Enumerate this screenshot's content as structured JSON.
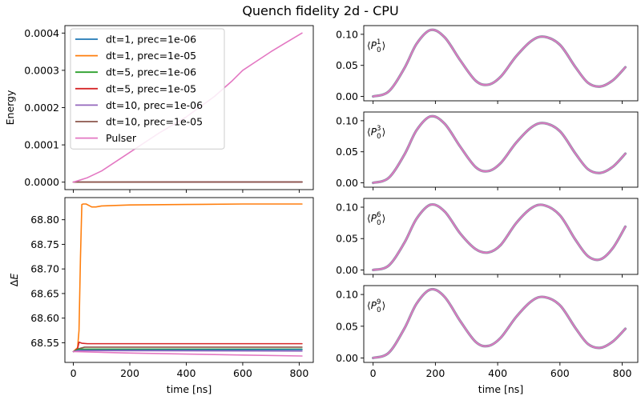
{
  "figure": {
    "title": "Quench fidelity 2d - CPU"
  },
  "chart_data": [
    {
      "id": "energy",
      "type": "line",
      "title": "",
      "xlabel": "",
      "ylabel": "Energy",
      "xlim": [
        -30,
        850
      ],
      "ylim": [
        -2e-05,
        0.00042
      ],
      "xticks": [
        0,
        200,
        400,
        600,
        800
      ],
      "yticks": [
        0.0,
        0.0001,
        0.0002,
        0.0003,
        0.0004
      ],
      "yticklabels": [
        "0.0000",
        "0.0001",
        "0.0002",
        "0.0003",
        "0.0004"
      ],
      "grid": false,
      "legend": "upper-left",
      "series": [
        {
          "name": "dt=1, prec=1e-06",
          "color": "#1f77b4",
          "x": [
            0,
            810
          ],
          "y": [
            0,
            5e-07
          ]
        },
        {
          "name": "dt=1, prec=1e-05",
          "color": "#ff7f0e",
          "x": [
            0,
            810
          ],
          "y": [
            0,
            5e-07
          ]
        },
        {
          "name": "dt=5, prec=1e-06",
          "color": "#2ca02c",
          "x": [
            0,
            810
          ],
          "y": [
            0,
            5e-07
          ]
        },
        {
          "name": "dt=5, prec=1e-05",
          "color": "#d62728",
          "x": [
            0,
            810
          ],
          "y": [
            0,
            5e-07
          ]
        },
        {
          "name": "dt=10, prec=1e-06",
          "color": "#9467bd",
          "x": [
            0,
            810
          ],
          "y": [
            0,
            5e-07
          ]
        },
        {
          "name": "dt=10, prec=1e-05",
          "color": "#8c564b",
          "x": [
            0,
            810
          ],
          "y": [
            0,
            5e-07
          ]
        },
        {
          "name": "Pulser",
          "color": "#e377c2",
          "x": [
            0,
            50,
            100,
            200,
            300,
            400,
            500,
            560,
            600,
            650,
            700,
            750,
            810
          ],
          "y": [
            0,
            1.2e-05,
            3e-05,
            8e-05,
            0.00013,
            0.000175,
            0.00023,
            0.00027,
            0.0003,
            0.000325,
            0.00035,
            0.000373,
            0.0004
          ]
        }
      ]
    },
    {
      "id": "deltaE",
      "type": "line",
      "title": "",
      "xlabel": "time [ns]",
      "ylabel": "ΔE",
      "xlim": [
        -30,
        850
      ],
      "ylim": [
        68.51,
        68.845
      ],
      "xticks": [
        0,
        200,
        400,
        600,
        800
      ],
      "yticks": [
        68.55,
        68.6,
        68.65,
        68.7,
        68.75,
        68.8
      ],
      "yticklabels": [
        "68.55",
        "68.60",
        "68.65",
        "68.70",
        "68.75",
        "68.80"
      ],
      "grid": false,
      "series": [
        {
          "name": "dt=1, prec=1e-05",
          "color": "#ff7f0e",
          "x": [
            0,
            15,
            20,
            25,
            30,
            35,
            45,
            55,
            65,
            80,
            100,
            150,
            200,
            400,
            600,
            810
          ],
          "y": [
            68.532,
            68.54,
            68.575,
            68.72,
            68.831,
            68.832,
            68.832,
            68.829,
            68.826,
            68.826,
            68.828,
            68.829,
            68.83,
            68.831,
            68.832,
            68.832
          ]
        },
        {
          "name": "dt=5, prec=1e-05",
          "color": "#d62728",
          "x": [
            0,
            15,
            20,
            30,
            50,
            100,
            810
          ],
          "y": [
            68.532,
            68.538,
            68.551,
            68.549,
            68.548,
            68.548,
            68.548
          ]
        },
        {
          "name": "dt=10, prec=1e-05",
          "color": "#8c564b",
          "x": [
            0,
            20,
            40,
            810
          ],
          "y": [
            68.532,
            68.538,
            68.541,
            68.541
          ]
        },
        {
          "name": "dt=5, prec=1e-06",
          "color": "#2ca02c",
          "x": [
            0,
            20,
            810
          ],
          "y": [
            68.532,
            68.537,
            68.537
          ]
        },
        {
          "name": "dt=1, prec=1e-06",
          "color": "#1f77b4",
          "x": [
            0,
            20,
            810
          ],
          "y": [
            68.532,
            68.535,
            68.536
          ]
        },
        {
          "name": "dt=10, prec=1e-06",
          "color": "#9467bd",
          "x": [
            0,
            20,
            810
          ],
          "y": [
            68.532,
            68.534,
            68.533
          ]
        },
        {
          "name": "Pulser",
          "color": "#e377c2",
          "x": [
            0,
            200,
            400,
            600,
            810
          ],
          "y": [
            68.532,
            68.529,
            68.527,
            68.525,
            68.523
          ]
        }
      ]
    },
    {
      "id": "p01",
      "type": "line",
      "ylabel": "⟨P₀¹⟩",
      "label_base": "P",
      "label_sub": "0",
      "label_sup": "1",
      "xlim": [
        -30,
        850
      ],
      "ylim": [
        -0.007,
        0.114
      ],
      "xticks": [
        0,
        200,
        400,
        600,
        800
      ],
      "yticks": [
        0.0,
        0.05,
        0.1
      ],
      "yticklabels": [
        "0.00",
        "0.05",
        "0.10"
      ],
      "show_xticklabels": false,
      "series": [
        {
          "name": "overlay",
          "color": "#e377c2",
          "shadow": "#8f8fa8",
          "x": [
            0,
            50,
            100,
            140,
            185,
            230,
            280,
            330,
            370,
            410,
            460,
            510,
            550,
            600,
            650,
            690,
            730,
            770,
            810
          ],
          "y": [
            0.0,
            0.008,
            0.045,
            0.085,
            0.107,
            0.095,
            0.058,
            0.025,
            0.019,
            0.032,
            0.065,
            0.09,
            0.096,
            0.083,
            0.047,
            0.022,
            0.016,
            0.026,
            0.047
          ]
        }
      ]
    },
    {
      "id": "p03",
      "type": "line",
      "ylabel": "⟨P₀³⟩",
      "label_base": "P",
      "label_sub": "0",
      "label_sup": "3",
      "xlim": [
        -30,
        850
      ],
      "ylim": [
        -0.007,
        0.114
      ],
      "xticks": [
        0,
        200,
        400,
        600,
        800
      ],
      "yticks": [
        0.0,
        0.05,
        0.1
      ],
      "yticklabels": [
        "0.00",
        "0.05",
        "0.10"
      ],
      "show_xticklabels": false,
      "series": [
        {
          "name": "overlay",
          "color": "#e377c2",
          "shadow": "#8f8fa8",
          "x": [
            0,
            50,
            100,
            140,
            185,
            230,
            280,
            330,
            370,
            410,
            460,
            510,
            550,
            600,
            650,
            690,
            730,
            770,
            810
          ],
          "y": [
            0.0,
            0.008,
            0.045,
            0.085,
            0.107,
            0.095,
            0.058,
            0.025,
            0.019,
            0.032,
            0.065,
            0.09,
            0.096,
            0.083,
            0.047,
            0.022,
            0.016,
            0.026,
            0.047
          ]
        }
      ]
    },
    {
      "id": "p06",
      "type": "line",
      "ylabel": "⟨P₀⁶⟩",
      "label_base": "P",
      "label_sub": "0",
      "label_sup": "6",
      "xlim": [
        -30,
        850
      ],
      "ylim": [
        -0.007,
        0.114
      ],
      "xticks": [
        0,
        200,
        400,
        600,
        800
      ],
      "yticks": [
        0.0,
        0.05,
        0.1
      ],
      "yticklabels": [
        "0.00",
        "0.05",
        "0.10"
      ],
      "show_xticklabels": false,
      "series": [
        {
          "name": "overlay",
          "color": "#e377c2",
          "shadow": "#8f8fa8",
          "x": [
            0,
            50,
            100,
            140,
            185,
            230,
            280,
            330,
            370,
            410,
            460,
            510,
            550,
            600,
            650,
            690,
            730,
            770,
            810
          ],
          "y": [
            0.0,
            0.007,
            0.043,
            0.082,
            0.104,
            0.093,
            0.058,
            0.033,
            0.028,
            0.04,
            0.075,
            0.099,
            0.103,
            0.087,
            0.048,
            0.022,
            0.017,
            0.035,
            0.069
          ]
        }
      ]
    },
    {
      "id": "p09",
      "type": "line",
      "ylabel": "⟨P₀⁹⟩",
      "label_base": "P",
      "label_sub": "0",
      "label_sup": "9",
      "xlim": [
        -30,
        850
      ],
      "ylim": [
        -0.007,
        0.114
      ],
      "xticks": [
        0,
        200,
        400,
        600,
        800
      ],
      "xticklabels": [
        "0",
        "200",
        "400",
        "600",
        "800"
      ],
      "yticks": [
        0.0,
        0.05,
        0.1
      ],
      "yticklabels": [
        "0.00",
        "0.05",
        "0.10"
      ],
      "xlabel": "time [ns]",
      "show_xticklabels": true,
      "series": [
        {
          "name": "overlay",
          "color": "#e377c2",
          "shadow": "#8f8fa8",
          "x": [
            0,
            50,
            100,
            140,
            185,
            230,
            280,
            330,
            370,
            410,
            460,
            510,
            550,
            600,
            650,
            690,
            730,
            770,
            810
          ],
          "y": [
            0.0,
            0.008,
            0.046,
            0.086,
            0.108,
            0.096,
            0.058,
            0.025,
            0.019,
            0.032,
            0.065,
            0.09,
            0.096,
            0.083,
            0.047,
            0.022,
            0.016,
            0.026,
            0.046
          ]
        }
      ]
    }
  ]
}
